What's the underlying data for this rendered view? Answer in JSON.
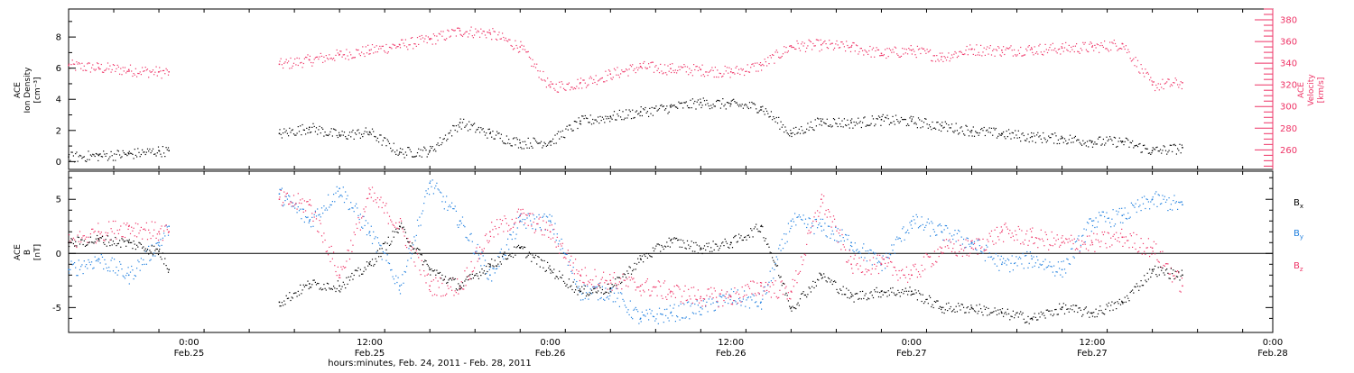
{
  "figure": {
    "xlabel": "hours:minutes, Feb. 24, 2011 - Feb. 28, 2011",
    "x_start": "2011-02-24T16:00",
    "x_end": "2011-02-28T00:00",
    "x_ticks": [
      {
        "time": "2011-02-25T00:00",
        "hour": "0:00",
        "date": "Feb.25"
      },
      {
        "time": "2011-02-25T12:00",
        "hour": "12:00",
        "date": "Feb.25"
      },
      {
        "time": "2011-02-26T00:00",
        "hour": "0:00",
        "date": "Feb.26"
      },
      {
        "time": "2011-02-26T12:00",
        "hour": "12:00",
        "date": "Feb.26"
      },
      {
        "time": "2011-02-27T00:00",
        "hour": "0:00",
        "date": "Feb.27"
      },
      {
        "time": "2011-02-27T12:00",
        "hour": "12:00",
        "date": "Feb.27"
      },
      {
        "time": "2011-02-28T00:00",
        "hour": "0:00",
        "date": "Feb.28"
      }
    ],
    "colors": {
      "density": "#000000",
      "velocity": "#ee3366",
      "bx": "#000000",
      "by": "#1f7fdf",
      "bz": "#ee3366",
      "axis": "#000000"
    }
  },
  "chart_data": [
    {
      "type": "scatter",
      "panel": "top",
      "title": "",
      "ylabel": "ACE Ion Density [cm⁻³]",
      "ylabel_lines": [
        "ACE",
        "Ion Density",
        "[cm⁻³]"
      ],
      "ylim": [
        -0.5,
        9.8
      ],
      "yticks": [
        0,
        2,
        4,
        6,
        8
      ],
      "y2label": "ACE Velocity [km/s]",
      "y2label_lines": [
        "ACE",
        "Velocity",
        "[km/s]"
      ],
      "y2lim": [
        242,
        390
      ],
      "y2ticks": [
        260,
        280,
        300,
        320,
        340,
        360,
        380
      ],
      "gaps": [
        [
          "2011-02-24T22:40",
          "2011-02-25T06:00"
        ]
      ],
      "series": [
        {
          "name": "",
          "axis": "left",
          "color": "#000000",
          "x": [
            "2011-02-24T16:00",
            "2011-02-24T18:00",
            "2011-02-24T20:00",
            "2011-02-24T22:00",
            "2011-02-24T22:40",
            "2011-02-25T06:00",
            "2011-02-25T08:00",
            "2011-02-25T10:00",
            "2011-02-25T12:00",
            "2011-02-25T14:00",
            "2011-02-25T16:00",
            "2011-02-25T18:00",
            "2011-02-25T20:00",
            "2011-02-25T22:00",
            "2011-02-26T00:00",
            "2011-02-26T02:00",
            "2011-02-26T04:00",
            "2011-02-26T06:00",
            "2011-02-26T08:00",
            "2011-02-26T10:00",
            "2011-02-26T12:00",
            "2011-02-26T14:00",
            "2011-02-26T16:00",
            "2011-02-26T18:00",
            "2011-02-26T20:00",
            "2011-02-26T22:00",
            "2011-02-27T00:00",
            "2011-02-27T02:00",
            "2011-02-27T04:00",
            "2011-02-27T06:00",
            "2011-02-27T08:00",
            "2011-02-27T10:00",
            "2011-02-27T12:00",
            "2011-02-27T14:00",
            "2011-02-27T16:00",
            "2011-02-27T18:00"
          ],
          "values": [
            0.3,
            0.4,
            0.5,
            0.7,
            0.7,
            1.8,
            2.2,
            1.7,
            1.9,
            0.6,
            0.7,
            2.5,
            1.8,
            1.2,
            1.3,
            2.6,
            2.9,
            3.2,
            3.5,
            3.8,
            3.7,
            3.5,
            1.8,
            2.6,
            2.5,
            2.7,
            2.6,
            2.3,
            2.0,
            1.8,
            1.6,
            1.5,
            1.3,
            1.3,
            0.7,
            0.9
          ]
        },
        {
          "name": "",
          "axis": "right",
          "color": "#ee3366",
          "x": [
            "2011-02-24T16:00",
            "2011-02-24T18:00",
            "2011-02-24T20:00",
            "2011-02-24T22:00",
            "2011-02-24T22:40",
            "2011-02-25T06:00",
            "2011-02-25T08:00",
            "2011-02-25T10:00",
            "2011-02-25T12:00",
            "2011-02-25T14:00",
            "2011-02-25T16:00",
            "2011-02-25T18:00",
            "2011-02-25T20:00",
            "2011-02-25T22:00",
            "2011-02-26T00:00",
            "2011-02-26T02:00",
            "2011-02-26T04:00",
            "2011-02-26T06:00",
            "2011-02-26T08:00",
            "2011-02-26T10:00",
            "2011-02-26T12:00",
            "2011-02-26T14:00",
            "2011-02-26T16:00",
            "2011-02-26T18:00",
            "2011-02-26T20:00",
            "2011-02-26T22:00",
            "2011-02-27T00:00",
            "2011-02-27T02:00",
            "2011-02-27T04:00",
            "2011-02-27T06:00",
            "2011-02-27T08:00",
            "2011-02-27T10:00",
            "2011-02-27T12:00",
            "2011-02-27T14:00",
            "2011-02-27T16:00",
            "2011-02-27T18:00"
          ],
          "values": [
            338,
            336,
            334,
            332,
            332,
            339,
            343,
            348,
            352,
            357,
            362,
            370,
            368,
            355,
            318,
            322,
            330,
            337,
            335,
            334,
            332,
            338,
            356,
            357,
            355,
            349,
            352,
            346,
            353,
            352,
            353,
            354,
            355,
            358,
            320,
            322
          ]
        }
      ]
    },
    {
      "type": "scatter",
      "panel": "bottom",
      "title": "",
      "ylabel": "ACE B [nT]",
      "ylabel_lines": [
        "ACE",
        "B",
        "[nT]"
      ],
      "ylim": [
        -7.3,
        7.6
      ],
      "yticks": [
        -5,
        0,
        5
      ],
      "gaps": [
        [
          "2011-02-24T22:40",
          "2011-02-25T06:00"
        ]
      ],
      "series": [
        {
          "name": "Bx",
          "name_main": "B",
          "name_sub": "x",
          "color": "#000000",
          "x": [
            "2011-02-24T16:00",
            "2011-02-24T18:00",
            "2011-02-24T20:00",
            "2011-02-24T22:00",
            "2011-02-24T22:40",
            "2011-02-25T06:00",
            "2011-02-25T08:00",
            "2011-02-25T10:00",
            "2011-02-25T12:00",
            "2011-02-25T14:00",
            "2011-02-25T16:00",
            "2011-02-25T18:00",
            "2011-02-25T20:00",
            "2011-02-25T22:00",
            "2011-02-26T00:00",
            "2011-02-26T02:00",
            "2011-02-26T04:00",
            "2011-02-26T06:00",
            "2011-02-26T08:00",
            "2011-02-26T10:00",
            "2011-02-26T12:00",
            "2011-02-26T14:00",
            "2011-02-26T16:00",
            "2011-02-26T18:00",
            "2011-02-26T20:00",
            "2011-02-26T22:00",
            "2011-02-27T00:00",
            "2011-02-27T02:00",
            "2011-02-27T04:00",
            "2011-02-27T06:00",
            "2011-02-27T08:00",
            "2011-02-27T10:00",
            "2011-02-27T12:00",
            "2011-02-27T14:00",
            "2011-02-27T16:00",
            "2011-02-27T18:00"
          ],
          "values": [
            1.0,
            1.3,
            1.0,
            0.2,
            -1.5,
            -4.5,
            -2.8,
            -3.0,
            -1.0,
            2.5,
            -1.5,
            -3.0,
            -1.0,
            0.5,
            -1.5,
            -3.5,
            -3.2,
            -0.5,
            1.2,
            0.5,
            1.0,
            2.5,
            -5.0,
            -2.0,
            -4.0,
            -3.5,
            -3.5,
            -5.0,
            -5.0,
            -5.5,
            -6.0,
            -5.0,
            -5.5,
            -4.5,
            -1.5,
            -2.0
          ]
        },
        {
          "name": "By",
          "name_main": "B",
          "name_sub": "y",
          "color": "#1f7fdf",
          "x": [
            "2011-02-24T16:00",
            "2011-02-24T18:00",
            "2011-02-24T20:00",
            "2011-02-24T22:00",
            "2011-02-24T22:40",
            "2011-02-25T06:00",
            "2011-02-25T08:00",
            "2011-02-25T10:00",
            "2011-02-25T12:00",
            "2011-02-25T14:00",
            "2011-02-25T16:00",
            "2011-02-25T18:00",
            "2011-02-25T20:00",
            "2011-02-25T22:00",
            "2011-02-26T00:00",
            "2011-02-26T02:00",
            "2011-02-26T04:00",
            "2011-02-26T06:00",
            "2011-02-26T08:00",
            "2011-02-26T10:00",
            "2011-02-26T12:00",
            "2011-02-26T14:00",
            "2011-02-26T16:00",
            "2011-02-26T18:00",
            "2011-02-26T20:00",
            "2011-02-26T22:00",
            "2011-02-27T00:00",
            "2011-02-27T02:00",
            "2011-02-27T04:00",
            "2011-02-27T06:00",
            "2011-02-27T08:00",
            "2011-02-27T10:00",
            "2011-02-27T12:00",
            "2011-02-27T14:00",
            "2011-02-27T16:00",
            "2011-02-27T18:00"
          ],
          "values": [
            -1.5,
            -0.5,
            -2.0,
            1.0,
            2.5,
            5.5,
            3.0,
            6.0,
            2.0,
            -3.0,
            6.5,
            3.0,
            -2.0,
            3.0,
            3.0,
            -3.5,
            -3.5,
            -6.0,
            -5.5,
            -5.0,
            -4.0,
            -4.5,
            3.0,
            2.5,
            1.0,
            -1.0,
            3.0,
            2.0,
            1.0,
            -1.0,
            -0.5,
            -1.5,
            3.0,
            3.5,
            5.0,
            4.5
          ]
        },
        {
          "name": "Bz",
          "name_main": "B",
          "name_sub": "z",
          "color": "#ee3366",
          "x": [
            "2011-02-24T16:00",
            "2011-02-24T18:00",
            "2011-02-24T20:00",
            "2011-02-24T22:00",
            "2011-02-24T22:40",
            "2011-02-25T06:00",
            "2011-02-25T08:00",
            "2011-02-25T10:00",
            "2011-02-25T12:00",
            "2011-02-25T14:00",
            "2011-02-25T16:00",
            "2011-02-25T18:00",
            "2011-02-25T20:00",
            "2011-02-25T22:00",
            "2011-02-26T00:00",
            "2011-02-26T02:00",
            "2011-02-26T04:00",
            "2011-02-26T06:00",
            "2011-02-26T08:00",
            "2011-02-26T10:00",
            "2011-02-26T12:00",
            "2011-02-26T14:00",
            "2011-02-26T16:00",
            "2011-02-26T18:00",
            "2011-02-26T20:00",
            "2011-02-26T22:00",
            "2011-02-27T00:00",
            "2011-02-27T02:00",
            "2011-02-27T04:00",
            "2011-02-27T06:00",
            "2011-02-27T08:00",
            "2011-02-27T10:00",
            "2011-02-27T12:00",
            "2011-02-27T14:00",
            "2011-02-27T16:00",
            "2011-02-27T18:00"
          ],
          "values": [
            1.0,
            2.0,
            2.5,
            2.0,
            2.0,
            5.0,
            4.5,
            -2.0,
            5.5,
            2.5,
            -3.0,
            -3.0,
            2.0,
            3.5,
            2.0,
            -2.0,
            -2.5,
            -3.0,
            -3.5,
            -4.0,
            -4.0,
            -3.0,
            -3.5,
            5.0,
            -1.0,
            -1.0,
            -2.0,
            0.5,
            0.5,
            2.0,
            1.5,
            1.0,
            1.0,
            1.5,
            0.5,
            -3.0
          ]
        }
      ]
    }
  ]
}
